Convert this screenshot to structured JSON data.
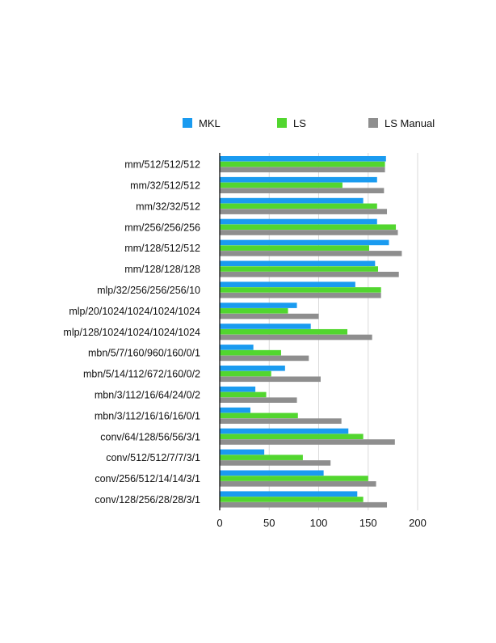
{
  "chart_data": {
    "type": "bar",
    "orientation": "horizontal",
    "categories": [
      "mm/512/512/512",
      "mm/32/512/512",
      "mm/32/32/512",
      "mm/256/256/256",
      "mm/128/512/512",
      "mm/128/128/128",
      "mlp/32/256/256/256/10",
      "mlp/20/1024/1024/1024/1024",
      "mlp/128/1024/1024/1024/1024",
      "mbn/5/7/160/960/160/0/1",
      "mbn/5/14/112/672/160/0/2",
      "mbn/3/112/16/64/24/0/2",
      "mbn/3/112/16/16/16/0/1",
      "conv/64/128/56/56/3/1",
      "conv/512/512/7/7/3/1",
      "conv/256/512/14/14/3/1",
      "conv/128/256/28/28/3/1"
    ],
    "series": [
      {
        "name": "MKL",
        "color": "#1a9bf0",
        "values": [
          168,
          159,
          145,
          159,
          171,
          157,
          137,
          78,
          92,
          34,
          66,
          36,
          31,
          130,
          45,
          105,
          139
        ]
      },
      {
        "name": "LS",
        "color": "#52d62f",
        "values": [
          167,
          124,
          159,
          178,
          151,
          160,
          163,
          69,
          129,
          62,
          52,
          47,
          79,
          145,
          84,
          150,
          145
        ]
      },
      {
        "name": "LS Manual",
        "color": "#8e8e8e",
        "values": [
          167,
          166,
          169,
          180,
          184,
          181,
          163,
          100,
          154,
          90,
          102,
          78,
          123,
          177,
          112,
          158,
          169
        ]
      }
    ],
    "xlim": [
      0,
      200
    ],
    "xticks": [
      0,
      50,
      100,
      150,
      200
    ],
    "grid": true,
    "legend_position": "top"
  }
}
